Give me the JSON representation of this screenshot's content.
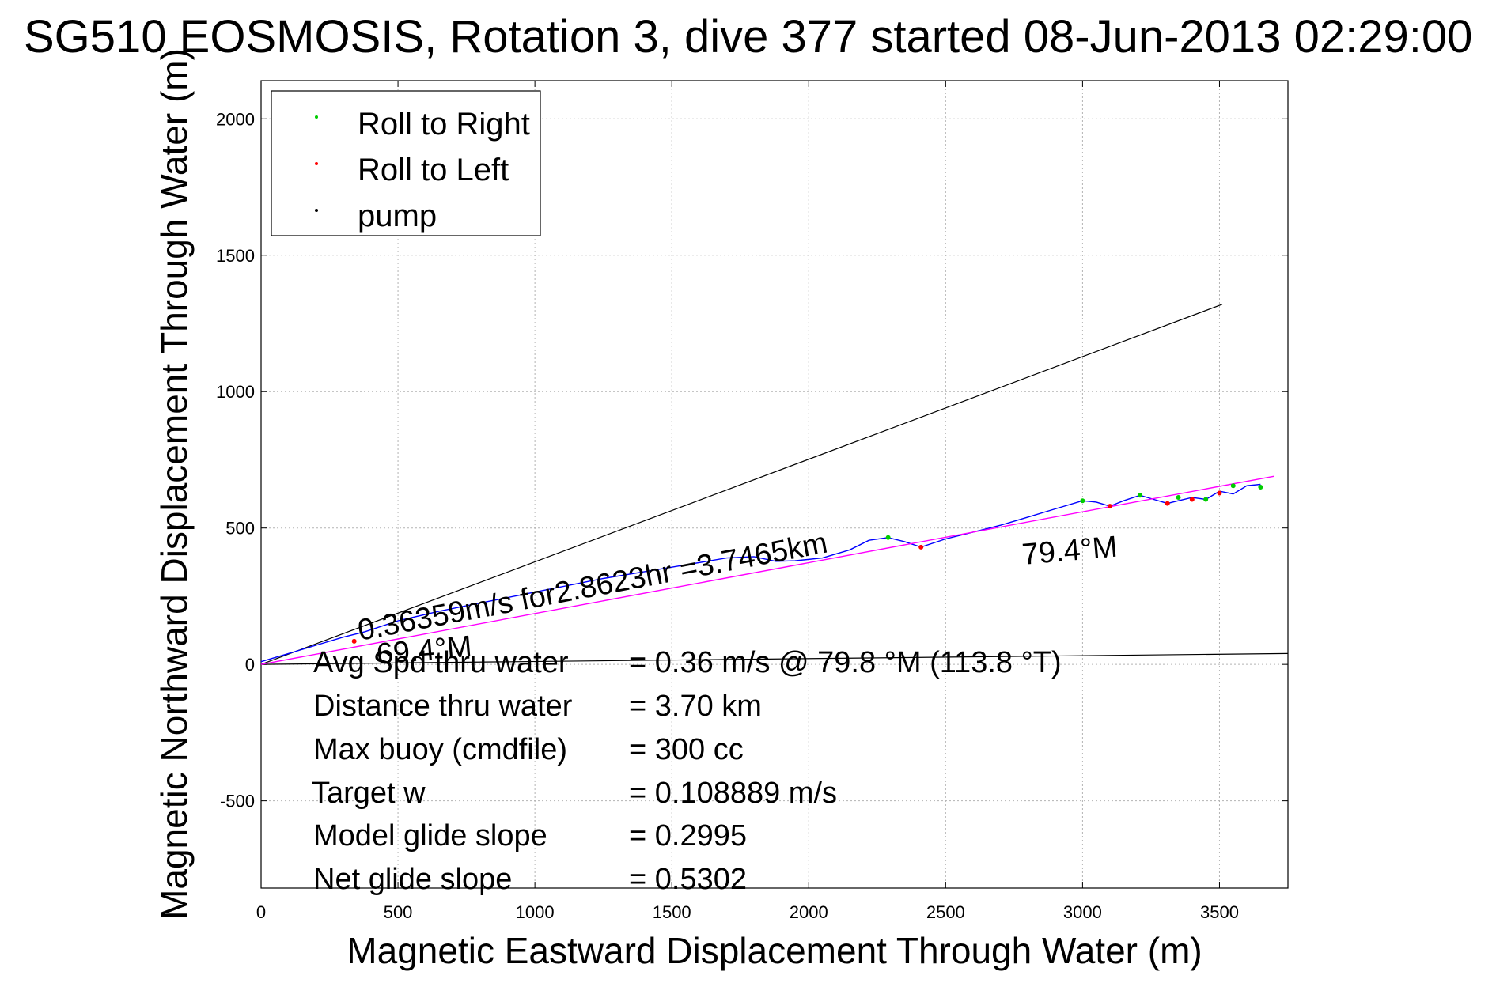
{
  "chart_data": {
    "type": "line",
    "title": "SG510 EOSMOSIS, Rotation 3, dive 377 started 08-Jun-2013 02:29:00",
    "xlabel": "Magnetic Eastward Displacement Through Water (m)",
    "ylabel": "Magnetic Northward Displacement Through Water (m)",
    "xlim": [
      0,
      3750
    ],
    "ylim": [
      -820,
      2140
    ],
    "xticks": [
      0,
      500,
      1000,
      1500,
      2000,
      2500,
      3000,
      3500
    ],
    "yticks": [
      -500,
      0,
      500,
      1000,
      1500,
      2000
    ],
    "xtick_labels": [
      "0",
      "500",
      "1000",
      "1500",
      "2000",
      "2500",
      "3000",
      "3500"
    ],
    "ytick_labels": [
      "-500",
      "0",
      "500",
      "1000",
      "1500",
      "2000"
    ],
    "grid": true,
    "legend": {
      "position": "top-left",
      "entries": [
        {
          "label": "Roll to Right",
          "color": "#00cc00"
        },
        {
          "label": "Roll to Left",
          "color": "#ff0000"
        },
        {
          "label": "pump",
          "color": "#000000"
        }
      ]
    },
    "track": {
      "color": "#0000ff",
      "x": [
        0,
        100,
        200,
        300,
        380,
        500,
        650,
        800,
        950,
        1100,
        1250,
        1400,
        1550,
        1700,
        1800,
        1880,
        1950,
        2050,
        2150,
        2220,
        2290,
        2350,
        2410,
        2500,
        2600,
        2700,
        2800,
        2900,
        3000,
        3050,
        3100,
        3150,
        3210,
        3260,
        3310,
        3350,
        3400,
        3450,
        3500,
        3550,
        3600,
        3650
      ],
      "y": [
        10,
        40,
        70,
        100,
        120,
        160,
        195,
        225,
        255,
        285,
        315,
        340,
        365,
        390,
        395,
        378,
        380,
        390,
        420,
        455,
        465,
        450,
        430,
        460,
        485,
        510,
        540,
        570,
        600,
        595,
        580,
        600,
        620,
        605,
        590,
        600,
        612,
        605,
        635,
        625,
        655,
        660
      ]
    },
    "roll_right_points": {
      "color": "#00cc00",
      "x": [
        2290,
        3000,
        3210,
        3350,
        3450,
        3550,
        3650
      ],
      "y": [
        465,
        600,
        620,
        612,
        605,
        655,
        650
      ]
    },
    "roll_left_points": {
      "color": "#ff0000",
      "x": [
        340,
        2410,
        3100,
        3310,
        3400,
        3500
      ],
      "y": [
        85,
        430,
        580,
        590,
        605,
        628
      ]
    },
    "pump_points": {
      "color": "#000000",
      "x": [],
      "y": []
    },
    "fit_line": {
      "color": "#ff00ff",
      "x": [
        0,
        3700
      ],
      "y": [
        0,
        690
      ]
    },
    "heading_line_1": {
      "color": "#000000",
      "x": [
        0,
        3510
      ],
      "y": [
        0,
        1320
      ]
    },
    "heading_line_2": {
      "color": "#000000",
      "x": [
        0,
        3750
      ],
      "y": [
        0,
        40
      ]
    },
    "annotations": {
      "speed_text": "0.36359m/s for2.8623hr =3.7465km",
      "heading_fit": "79.4°M",
      "heading_other": "69.4°M"
    },
    "stats": [
      {
        "label": "Avg Spd thru water",
        "value": "=  0.36 m/s @  79.8 °M (113.8 °T)"
      },
      {
        "label": "Distance thru water",
        "value": "=  3.70 km"
      },
      {
        "label": "Max buoy (cmdfile)",
        "value": "= 300 cc"
      },
      {
        "label": "Target w",
        "value": "= 0.108889 m/s"
      },
      {
        "label": "Model glide slope",
        "value": "= 0.2995"
      },
      {
        "label": "Net glide slope",
        "value": "= 0.5302"
      }
    ]
  }
}
